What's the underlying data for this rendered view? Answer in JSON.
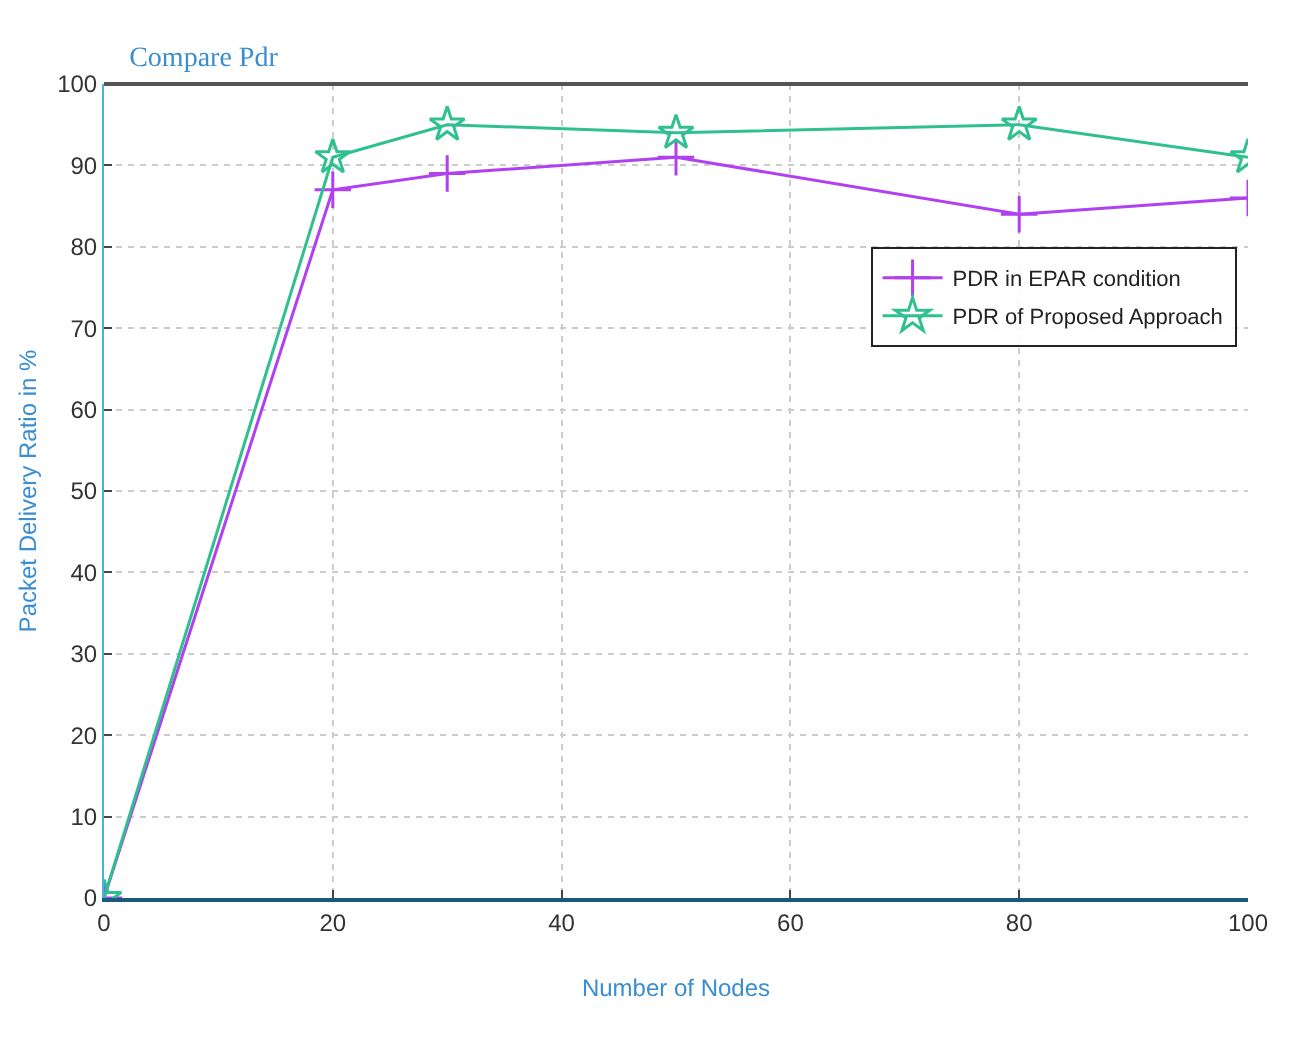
{
  "chart_data": {
    "type": "line",
    "title": "Compare Pdr",
    "xlabel": "Number of Nodes",
    "ylabel": "Packet Delivery Ratio in %",
    "x": [
      0,
      20,
      30,
      50,
      80,
      100
    ],
    "series": [
      {
        "name": "PDR in EPAR condition",
        "color": "#b040f0",
        "marker": "cross",
        "values": [
          0,
          87,
          89,
          91,
          84,
          86
        ]
      },
      {
        "name": "PDR of Proposed Approach",
        "color": "#30c090",
        "marker": "star",
        "values": [
          0,
          91,
          95,
          94,
          95,
          91
        ]
      }
    ],
    "xlim": [
      0,
      100
    ],
    "xticks": [
      0,
      20,
      40,
      60,
      80,
      100
    ],
    "ylim": [
      0,
      100
    ],
    "yticks": [
      0,
      10,
      20,
      30,
      40,
      50,
      60,
      70,
      80,
      90,
      100
    ],
    "grid": true,
    "legend": "top right",
    "line_style": "solid"
  }
}
